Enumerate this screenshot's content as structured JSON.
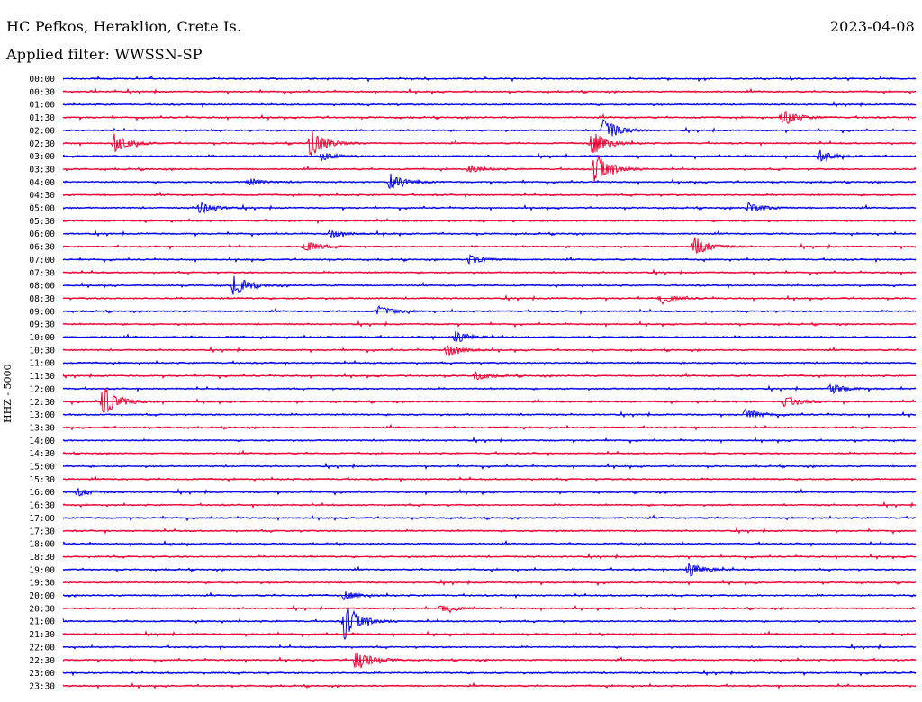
{
  "header": {
    "station": "HC Pefkos, Heraklion, Crete Is.",
    "date": "2023-04-08",
    "filter": "Applied filter: WWSSN-SP"
  },
  "channel_label": "HHZ - 5000",
  "colors": {
    "even_row": "#0000ee",
    "odd_row": "#ee0033"
  },
  "chart_data": {
    "type": "line",
    "title": "HC Pefkos, Heraklion, Crete Is.",
    "subtitle": "Applied filter: WWSSN-SP",
    "ylabel": "HHZ - 5000",
    "rows": [
      "00:00",
      "00:30",
      "01:00",
      "01:30",
      "02:00",
      "02:30",
      "03:00",
      "03:30",
      "04:00",
      "04:30",
      "05:00",
      "05:30",
      "06:00",
      "06:30",
      "07:00",
      "07:30",
      "08:00",
      "08:30",
      "09:00",
      "09:30",
      "10:00",
      "10:30",
      "11:00",
      "11:30",
      "12:00",
      "12:30",
      "13:00",
      "13:30",
      "14:00",
      "14:30",
      "15:00",
      "15:30",
      "16:00",
      "16:30",
      "17:00",
      "17:30",
      "18:00",
      "18:30",
      "19:00",
      "19:30",
      "20:00",
      "20:30",
      "21:00",
      "21:30",
      "22:00",
      "22:30",
      "23:00",
      "23:30"
    ],
    "row_minutes": 30,
    "events": [
      {
        "row": "02:00",
        "minute": 19.0,
        "amplitude": 0.8
      },
      {
        "row": "02:30",
        "minute": 1.8,
        "amplitude": 0.6
      },
      {
        "row": "02:30",
        "minute": 8.7,
        "amplitude": 1.0
      },
      {
        "row": "02:30",
        "minute": 18.6,
        "amplitude": 0.9
      },
      {
        "row": "01:30",
        "minute": 25.3,
        "amplitude": 0.6
      },
      {
        "row": "03:00",
        "minute": 9.1,
        "amplitude": 0.3
      },
      {
        "row": "03:00",
        "minute": 26.6,
        "amplitude": 0.35
      },
      {
        "row": "03:30",
        "minute": 18.7,
        "amplitude": 1.2
      },
      {
        "row": "03:30",
        "minute": 14.3,
        "amplitude": 0.25
      },
      {
        "row": "04:00",
        "minute": 6.5,
        "amplitude": 0.25
      },
      {
        "row": "04:00",
        "minute": 11.5,
        "amplitude": 0.5
      },
      {
        "row": "05:00",
        "minute": 4.8,
        "amplitude": 0.4
      },
      {
        "row": "05:00",
        "minute": 24.1,
        "amplitude": 0.35
      },
      {
        "row": "06:00",
        "minute": 9.4,
        "amplitude": 0.25
      },
      {
        "row": "06:30",
        "minute": 22.2,
        "amplitude": 0.7
      },
      {
        "row": "06:30",
        "minute": 8.5,
        "amplitude": 0.4
      },
      {
        "row": "07:00",
        "minute": 14.3,
        "amplitude": 0.3
      },
      {
        "row": "08:00",
        "minute": 6.0,
        "amplitude": 0.7
      },
      {
        "row": "08:30",
        "minute": 21.0,
        "amplitude": 0.3
      },
      {
        "row": "09:00",
        "minute": 11.1,
        "amplitude": 0.35
      },
      {
        "row": "10:00",
        "minute": 13.8,
        "amplitude": 0.4
      },
      {
        "row": "10:30",
        "minute": 13.5,
        "amplitude": 0.4
      },
      {
        "row": "11:30",
        "minute": 14.5,
        "amplitude": 0.3
      },
      {
        "row": "12:00",
        "minute": 27.0,
        "amplitude": 0.35
      },
      {
        "row": "12:30",
        "minute": 1.4,
        "amplitude": 1.1
      },
      {
        "row": "12:30",
        "minute": 25.4,
        "amplitude": 0.4
      },
      {
        "row": "13:00",
        "minute": 24.0,
        "amplitude": 0.4
      },
      {
        "row": "16:00",
        "minute": 0.5,
        "amplitude": 0.3
      },
      {
        "row": "19:00",
        "minute": 22.0,
        "amplitude": 0.5
      },
      {
        "row": "20:00",
        "minute": 9.9,
        "amplitude": 0.3
      },
      {
        "row": "20:30",
        "minute": 13.3,
        "amplitude": 0.25
      },
      {
        "row": "21:00",
        "minute": 9.9,
        "amplitude": 1.3
      },
      {
        "row": "22:30",
        "minute": 10.3,
        "amplitude": 0.8
      }
    ]
  }
}
